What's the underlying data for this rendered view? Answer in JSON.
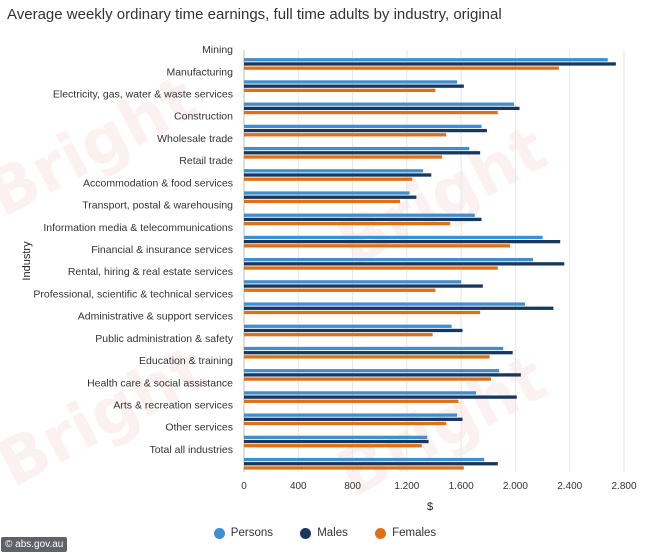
{
  "page_title": "Average weekly ordinary time earnings, full time adults by industry, original",
  "source": "abs.gov.au",
  "watermark_text": "Bright",
  "colors": {
    "persons": "#3f8ed0",
    "males": "#17375e",
    "females": "#e07016",
    "grid": "#e6e6e6"
  },
  "chart_data": {
    "type": "bar",
    "orientation": "horizontal",
    "title": "Average weekly ordinary time earnings, full time adults by industry, original",
    "xlabel": "$",
    "ylabel": "Industry",
    "xlim": [
      0,
      2800
    ],
    "xticks": [
      0,
      400,
      800,
      1200,
      1600,
      2000,
      2400,
      2800
    ],
    "xtick_labels": [
      "0",
      "400",
      "800",
      "1.200",
      "1.600",
      "2.000",
      "2.400",
      "2.800"
    ],
    "grid": true,
    "legend_position": "bottom",
    "categories": [
      "Mining",
      "Manufacturing",
      "Electricity, gas, water & waste services",
      "Construction",
      "Wholesale trade",
      "Retail trade",
      "Accommodation & food services",
      "Transport, postal & warehousing",
      "Information media & telecommunications",
      "Financial & insurance services",
      "Rental, hiring & real estate services",
      "Professional, scientific & technical services",
      "Administrative & support services",
      "Public administration & safety",
      "Education & training",
      "Health care & social assistance",
      "Arts & recreation services",
      "Other services",
      "Total all industries"
    ],
    "series": [
      {
        "name": "Persons",
        "key": "persons",
        "values": [
          2680,
          1570,
          1990,
          1750,
          1660,
          1320,
          1220,
          1700,
          2200,
          2130,
          1600,
          2070,
          1530,
          1910,
          1880,
          1710,
          1570,
          1350,
          1770
        ]
      },
      {
        "name": "Males",
        "key": "males",
        "values": [
          2740,
          1620,
          2030,
          1790,
          1740,
          1380,
          1270,
          1750,
          2330,
          2360,
          1760,
          2280,
          1610,
          1980,
          2040,
          2010,
          1610,
          1360,
          1870
        ]
      },
      {
        "name": "Females",
        "key": "females",
        "values": [
          2320,
          1410,
          1870,
          1490,
          1460,
          1240,
          1150,
          1520,
          1960,
          1870,
          1410,
          1740,
          1390,
          1810,
          1820,
          1580,
          1490,
          1310,
          1620
        ]
      }
    ]
  }
}
